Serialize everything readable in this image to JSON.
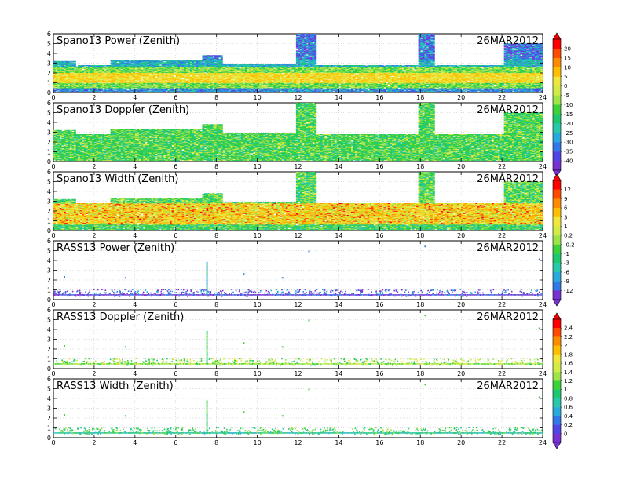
{
  "figure": {
    "date": "26MAR2012"
  },
  "panels": [
    {
      "title": "Spano13 Power (Zenith)",
      "kind": "spano",
      "profile": "power",
      "colorbar": 0
    },
    {
      "title": "Spano13 Doppler (Zenith)",
      "kind": "spano",
      "profile": "doppler",
      "colorbar": 0
    },
    {
      "title": "Spano13 Width (Zenith)",
      "kind": "spano",
      "profile": "width",
      "colorbar": 1
    },
    {
      "title": "RASS13 Power (Zenith)",
      "kind": "rass",
      "profile": "power",
      "colorbar": 1
    },
    {
      "title": "RASS13 Doppler (Zenith)",
      "kind": "rass",
      "profile": "doppler",
      "colorbar": 2
    },
    {
      "title": "RASS13 Width (Zenith)",
      "kind": "rass",
      "profile": "width",
      "colorbar": 2
    }
  ],
  "axes": {
    "x_range": [
      0,
      24
    ],
    "x_ticks": [
      "0",
      "2",
      "4",
      "6",
      "8",
      "10",
      "12",
      "14",
      "16",
      "18",
      "20",
      "22",
      "24"
    ],
    "y_range": [
      0,
      6
    ],
    "y_ticks": [
      "0",
      "1",
      "2",
      "3",
      "4",
      "5",
      "6"
    ],
    "grid": true
  },
  "colorbars": [
    {
      "labels": [
        "20",
        "15",
        "10",
        "5",
        "0",
        "-5",
        "-10",
        "-15",
        "-20",
        "-25",
        "-30",
        "-35",
        "-40"
      ],
      "colors": [
        "#ff0000",
        "#ff4a00",
        "#ff8c00",
        "#ffbe00",
        "#f0e63c",
        "#d2eb46",
        "#9ee446",
        "#3cd23c",
        "#1ec86e",
        "#28c8aa",
        "#28aadc",
        "#3278e6",
        "#5046e6",
        "#7832d2"
      ]
    },
    {
      "labels": [
        "12",
        "9",
        "6",
        "3",
        "1",
        "0.2",
        "-0.2",
        "-1",
        "-3",
        "-6",
        "-9",
        "-12"
      ],
      "colors": [
        "#ff0000",
        "#ff4a00",
        "#ff8c00",
        "#ffbe00",
        "#f0e63c",
        "#d2eb46",
        "#9ee446",
        "#3cd23c",
        "#1ec86e",
        "#28c8aa",
        "#28aadc",
        "#3278e6",
        "#7832d2"
      ]
    },
    {
      "labels": [
        "2.4",
        "2.2",
        "2",
        "1.8",
        "1.6",
        "1.4",
        "1.2",
        "1",
        "0.8",
        "0.6",
        "0.4",
        "0.2",
        "0"
      ],
      "colors": [
        "#ff0000",
        "#ff4a00",
        "#ff8c00",
        "#ffbe00",
        "#f0e63c",
        "#d2eb46",
        "#9ee446",
        "#3cd23c",
        "#1ec86e",
        "#28c8aa",
        "#28aadc",
        "#3278e6",
        "#5046e6",
        "#7832d2"
      ]
    }
  ],
  "chart_data": [
    {
      "type": "heatmap",
      "title": "Spano13 Power (Zenith)",
      "date": "26MAR2012",
      "xlim": [
        0,
        24
      ],
      "ylim": [
        0,
        6
      ],
      "data_extent": [
        {
          "x": [
            0,
            1.0
          ],
          "ymax": 3.2
        },
        {
          "x": [
            1.0,
            2.8
          ],
          "ymax": 2.8
        },
        {
          "x": [
            2.8,
            5.5
          ],
          "ymax": 3.3
        },
        {
          "x": [
            5.5,
            7.2
          ],
          "ymax": 3.3
        },
        {
          "x": [
            7.2,
            8.2
          ],
          "ymax": 3.8
        },
        {
          "x": [
            8.2,
            11.8
          ],
          "ymax": 2.9
        },
        {
          "x": [
            11.8,
            12.8
          ],
          "ymax": 6.0
        },
        {
          "x": [
            12.8,
            17.8
          ],
          "ymax": 2.8
        },
        {
          "x": [
            17.8,
            18.6
          ],
          "ymax": 6.0
        },
        {
          "x": [
            18.6,
            22.1
          ],
          "ymax": 2.8
        },
        {
          "x": [
            22.1,
            24.0
          ],
          "ymax": 5.0
        }
      ],
      "dominant_levels": {
        "near_surface": "-30",
        "core_1_to_2km": "5",
        "upper": "-15"
      }
    },
    {
      "type": "heatmap",
      "title": "Spano13 Doppler (Zenith)",
      "date": "26MAR2012",
      "xlim": [
        0,
        24
      ],
      "ylim": [
        0,
        6
      ],
      "data_extent": [
        {
          "x": [
            0,
            1.0
          ],
          "ymax": 3.2
        },
        {
          "x": [
            1.0,
            2.8
          ],
          "ymax": 2.8
        },
        {
          "x": [
            2.8,
            5.5
          ],
          "ymax": 3.3
        },
        {
          "x": [
            5.5,
            7.2
          ],
          "ymax": 3.3
        },
        {
          "x": [
            7.2,
            8.2
          ],
          "ymax": 3.8
        },
        {
          "x": [
            8.2,
            11.8
          ],
          "ymax": 2.9
        },
        {
          "x": [
            11.8,
            12.8
          ],
          "ymax": 6.0
        },
        {
          "x": [
            12.8,
            17.8
          ],
          "ymax": 2.8
        },
        {
          "x": [
            17.8,
            18.6
          ],
          "ymax": 6.0
        },
        {
          "x": [
            18.6,
            22.1
          ],
          "ymax": 2.8
        },
        {
          "x": [
            22.1,
            24.0
          ],
          "ymax": 5.0
        }
      ],
      "dominant_levels": {
        "all_heights": "-10 to -20"
      }
    },
    {
      "type": "heatmap",
      "title": "Spano13 Width (Zenith)",
      "date": "26MAR2012",
      "xlim": [
        0,
        24
      ],
      "ylim": [
        0,
        6
      ],
      "data_extent": [
        {
          "x": [
            0,
            1.0
          ],
          "ymax": 3.2
        },
        {
          "x": [
            1.0,
            2.8
          ],
          "ymax": 2.8
        },
        {
          "x": [
            2.8,
            5.5
          ],
          "ymax": 3.3
        },
        {
          "x": [
            5.5,
            7.2
          ],
          "ymax": 3.3
        },
        {
          "x": [
            7.2,
            8.2
          ],
          "ymax": 3.8
        },
        {
          "x": [
            8.2,
            11.8
          ],
          "ymax": 2.9
        },
        {
          "x": [
            11.8,
            12.8
          ],
          "ymax": 6.0
        },
        {
          "x": [
            12.8,
            17.8
          ],
          "ymax": 2.8
        },
        {
          "x": [
            17.8,
            18.6
          ],
          "ymax": 6.0
        },
        {
          "x": [
            18.6,
            22.1
          ],
          "ymax": 2.8
        },
        {
          "x": [
            22.1,
            24.0
          ],
          "ymax": 5.0
        }
      ],
      "dominant_levels": {
        "core_1_to_3km": "3 to 12",
        "edges": "0.2 to 1"
      }
    },
    {
      "type": "scatter",
      "title": "RASS13 Power (Zenith)",
      "date": "26MAR2012",
      "xlim": [
        0,
        24
      ],
      "ylim": [
        0,
        6
      ],
      "base_height_range": [
        0.4,
        1.1
      ],
      "spike": {
        "x": 7.5,
        "ymax": 3.9
      },
      "isolated_points": [
        {
          "x": 0.5,
          "y": 2.4
        },
        {
          "x": 3.5,
          "y": 2.3
        },
        {
          "x": 9.3,
          "y": 2.7
        },
        {
          "x": 11.2,
          "y": 2.3
        },
        {
          "x": 12.5,
          "y": 5.0
        },
        {
          "x": 18.2,
          "y": 5.5
        },
        {
          "x": 23.8,
          "y": 4.2
        }
      ],
      "dominant_level": "-9 to -12"
    },
    {
      "type": "scatter",
      "title": "RASS13 Doppler (Zenith)",
      "date": "26MAR2012",
      "xlim": [
        0,
        24
      ],
      "ylim": [
        0,
        6
      ],
      "base_height_range": [
        0.4,
        1.1
      ],
      "spike": {
        "x": 7.5,
        "ymax": 3.9
      },
      "isolated_points": [
        {
          "x": 0.5,
          "y": 2.4
        },
        {
          "x": 3.5,
          "y": 2.3
        },
        {
          "x": 9.3,
          "y": 2.7
        },
        {
          "x": 11.2,
          "y": 2.3
        },
        {
          "x": 12.5,
          "y": 5.0
        },
        {
          "x": 18.2,
          "y": 5.5
        },
        {
          "x": 23.8,
          "y": 4.2
        }
      ],
      "dominant_level": "0.8 to 1.2"
    },
    {
      "type": "scatter",
      "title": "RASS13 Width (Zenith)",
      "date": "26MAR2012",
      "xlim": [
        0,
        24
      ],
      "ylim": [
        0,
        6
      ],
      "base_height_range": [
        0.4,
        1.1
      ],
      "spike": {
        "x": 7.5,
        "ymax": 3.9
      },
      "isolated_points": [
        {
          "x": 0.5,
          "y": 2.4
        },
        {
          "x": 3.5,
          "y": 2.3
        },
        {
          "x": 9.3,
          "y": 2.7
        },
        {
          "x": 11.2,
          "y": 2.3
        },
        {
          "x": 12.5,
          "y": 5.0
        },
        {
          "x": 18.2,
          "y": 5.5
        },
        {
          "x": 23.8,
          "y": 4.2
        }
      ],
      "dominant_level": "0.6 to 1.0"
    }
  ]
}
